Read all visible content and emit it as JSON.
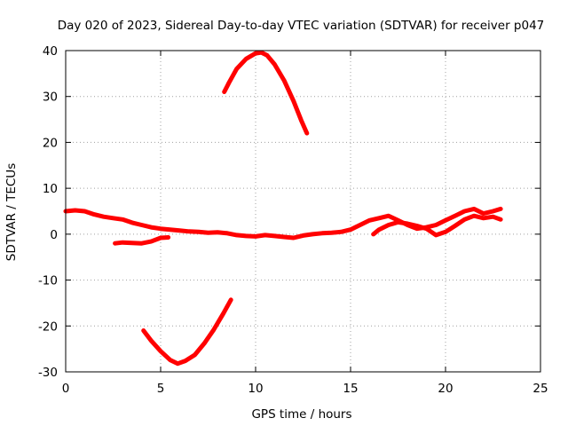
{
  "chart_data": {
    "type": "line",
    "title": "Day 020 of 2023, Sidereal Day-to-day VTEC variation (SDTVAR) for receiver p047",
    "xlabel": "GPS time / hours",
    "ylabel": "SDTVAR / TECUs",
    "xlim": [
      0,
      25
    ],
    "ylim": [
      -30,
      40
    ],
    "xticks": [
      0,
      5,
      10,
      15,
      20,
      25
    ],
    "yticks": [
      40,
      30,
      20,
      10,
      0,
      -10,
      -20,
      -30
    ],
    "xtick_labels": [
      "0",
      "5",
      "10",
      "15",
      "20",
      "25"
    ],
    "ytick_labels": [
      "40",
      "30",
      "20",
      "10",
      "0",
      "-10",
      "-20",
      "-30"
    ],
    "grid": true,
    "color": "#ff0000",
    "series": [
      {
        "name": "main-trace",
        "points": [
          [
            0,
            5
          ],
          [
            0.5,
            5.2
          ],
          [
            1,
            5
          ],
          [
            1.5,
            4.3
          ],
          [
            2,
            3.8
          ],
          [
            2.5,
            3.5
          ],
          [
            3,
            3.2
          ],
          [
            3.5,
            2.5
          ],
          [
            4,
            2
          ],
          [
            4.5,
            1.5
          ],
          [
            5,
            1.2
          ],
          [
            5.5,
            1
          ],
          [
            6,
            0.8
          ],
          [
            6.5,
            0.6
          ],
          [
            7,
            0.5
          ],
          [
            7.5,
            0.3
          ],
          [
            8,
            0.4
          ],
          [
            8.5,
            0.2
          ],
          [
            9,
            -0.2
          ],
          [
            9.5,
            -0.4
          ],
          [
            10,
            -0.5
          ],
          [
            10.5,
            -0.2
          ],
          [
            11,
            -0.4
          ],
          [
            11.5,
            -0.6
          ],
          [
            12,
            -0.8
          ],
          [
            12.5,
            -0.3
          ],
          [
            13,
            0
          ],
          [
            13.5,
            0.2
          ],
          [
            14,
            0.3
          ],
          [
            14.5,
            0.5
          ],
          [
            15,
            1
          ],
          [
            15.5,
            2
          ],
          [
            16,
            3
          ],
          [
            16.5,
            3.5
          ],
          [
            17,
            4
          ],
          [
            17.5,
            3
          ],
          [
            18,
            2
          ],
          [
            18.5,
            1.2
          ],
          [
            19,
            1.5
          ],
          [
            19.5,
            2
          ],
          [
            20,
            3
          ],
          [
            20.5,
            4
          ],
          [
            21,
            5
          ],
          [
            21.5,
            5.5
          ],
          [
            22,
            4.5
          ],
          [
            22.5,
            5
          ],
          [
            22.9,
            5.5
          ]
        ]
      },
      {
        "name": "lower-branch-early",
        "points": [
          [
            2.6,
            -2
          ],
          [
            3,
            -1.8
          ],
          [
            3.5,
            -1.9
          ],
          [
            4,
            -2
          ],
          [
            4.5,
            -1.6
          ],
          [
            5,
            -0.8
          ],
          [
            5.4,
            -0.7
          ]
        ]
      },
      {
        "name": "lower-branch-late",
        "points": [
          [
            16.2,
            0
          ],
          [
            16.5,
            1
          ],
          [
            17,
            2
          ],
          [
            17.5,
            2.6
          ],
          [
            18,
            2.3
          ],
          [
            18.5,
            1.8
          ],
          [
            19,
            1.2
          ],
          [
            19.5,
            -0.2
          ],
          [
            20,
            0.5
          ],
          [
            20.5,
            1.8
          ],
          [
            21,
            3.2
          ],
          [
            21.5,
            4
          ],
          [
            22,
            3.5
          ],
          [
            22.5,
            3.8
          ],
          [
            22.9,
            3.2
          ]
        ]
      },
      {
        "name": "upper-arc",
        "points": [
          [
            8.35,
            31
          ],
          [
            8.6,
            33
          ],
          [
            9,
            36
          ],
          [
            9.5,
            38.2
          ],
          [
            10,
            39.4
          ],
          [
            10.3,
            39.6
          ],
          [
            10.6,
            39
          ],
          [
            11,
            37
          ],
          [
            11.5,
            33.5
          ],
          [
            12,
            29
          ],
          [
            12.4,
            24.8
          ],
          [
            12.7,
            22
          ]
        ]
      },
      {
        "name": "lower-arc",
        "points": [
          [
            4.1,
            -21
          ],
          [
            4.5,
            -23.2
          ],
          [
            5,
            -25.5
          ],
          [
            5.5,
            -27.4
          ],
          [
            5.9,
            -28.2
          ],
          [
            6.3,
            -27.6
          ],
          [
            6.8,
            -26.3
          ],
          [
            7.3,
            -23.8
          ],
          [
            7.8,
            -20.8
          ],
          [
            8.3,
            -17.3
          ],
          [
            8.7,
            -14.3
          ]
        ]
      }
    ]
  }
}
